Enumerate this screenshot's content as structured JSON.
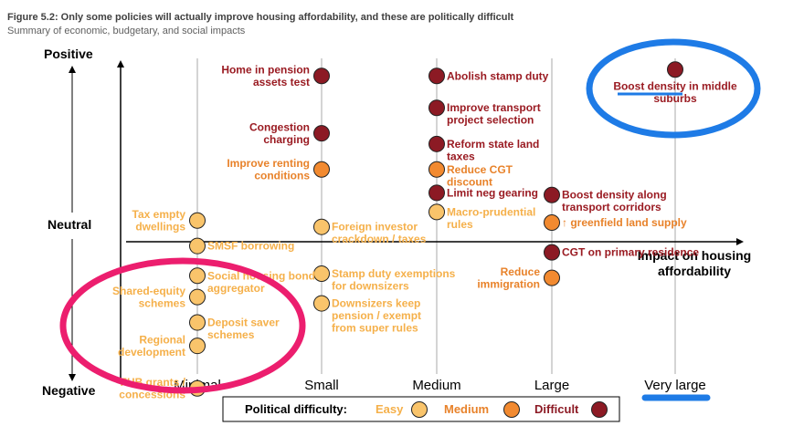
{
  "chart_data": {
    "type": "scatter",
    "title": "Figure 5.2: Only some policies will actually improve housing affordability, and these are politically difficult",
    "subtitle": "Summary of economic, budgetary, and social impacts",
    "x_axis_label": "Impact on housing affordability",
    "x_categories": [
      "Minimal",
      "Small",
      "Medium",
      "Large",
      "Very large"
    ],
    "y_axis_labels": {
      "top": "Positive",
      "middle": "Neutral",
      "bottom": "Negative"
    },
    "y_range": [
      -10,
      10
    ],
    "legend": {
      "title": "Political difficulty:",
      "items": [
        {
          "label": "Easy",
          "color": "#f9c46b",
          "text_color": "#f5b04a"
        },
        {
          "label": "Medium",
          "color": "#f28a30",
          "text_color": "#e8822a"
        },
        {
          "label": "Difficult",
          "color": "#8c1a24",
          "text_color": "#8c1a24"
        }
      ]
    },
    "colors": {
      "easy": "#f9c46b",
      "medium": "#f28a30",
      "difficult": "#8c1a24",
      "easy_text": "#f5b04a",
      "medium_text": "#e8822a",
      "difficult_text": "#9a1b22",
      "annotation_pink": "#ec1e6e",
      "annotation_blue": "#1e7be6"
    },
    "points": [
      {
        "id": "home-pension",
        "category": "Small",
        "score": 7.8,
        "difficulty": "Difficult",
        "label": [
          "Home in pension",
          "assets test"
        ]
      },
      {
        "id": "congestion",
        "category": "Small",
        "score": 5.1,
        "difficulty": "Difficult",
        "label": [
          "Congestion",
          "charging"
        ]
      },
      {
        "id": "renting",
        "category": "Small",
        "score": 3.4,
        "difficulty": "Medium",
        "label": [
          "Improve renting",
          "conditions"
        ]
      },
      {
        "id": "foreign-investor",
        "category": "Small",
        "score": 0.7,
        "difficulty": "Easy",
        "label": [
          "Foreign investor",
          "crackdown / taxes"
        ]
      },
      {
        "id": "stamp-exempt",
        "category": "Small",
        "score": -1.5,
        "difficulty": "Easy",
        "label": [
          "Stamp duty exemptions",
          "for downsizers"
        ]
      },
      {
        "id": "downsizers",
        "category": "Small",
        "score": -2.9,
        "difficulty": "Easy",
        "label": [
          "Downsizers keep",
          "pension / exempt",
          "from super rules"
        ]
      },
      {
        "id": "tax-empty",
        "category": "Minimal",
        "score": 1.0,
        "difficulty": "Easy",
        "label": [
          "Tax empty",
          "dwellings"
        ]
      },
      {
        "id": "smsf",
        "category": "Minimal",
        "score": -0.2,
        "difficulty": "Easy",
        "label": [
          "SMSF borrowing"
        ]
      },
      {
        "id": "housing-bond",
        "category": "Minimal",
        "score": -1.6,
        "difficulty": "Easy",
        "label": [
          "Social housing bond",
          "aggregator"
        ]
      },
      {
        "id": "shared-equity",
        "category": "Minimal",
        "score": -2.6,
        "difficulty": "Easy",
        "label": [
          "Shared-equity",
          "schemes"
        ]
      },
      {
        "id": "deposit-saver",
        "category": "Minimal",
        "score": -3.8,
        "difficulty": "Easy",
        "label": [
          "Deposit saver",
          "schemes"
        ]
      },
      {
        "id": "regional",
        "category": "Minimal",
        "score": -4.9,
        "difficulty": "Easy",
        "label": [
          "Regional",
          "development"
        ]
      },
      {
        "id": "fhb-grants",
        "category": "Minimal",
        "score": -6.9,
        "difficulty": "Easy",
        "label": [
          "FHB grants /",
          "concessions"
        ]
      },
      {
        "id": "abolish-stamp",
        "category": "Medium",
        "score": 7.8,
        "difficulty": "Difficult",
        "label": [
          "Abolish stamp duty"
        ]
      },
      {
        "id": "transport-proj",
        "category": "Medium",
        "score": 6.3,
        "difficulty": "Difficult",
        "label": [
          "Improve transport",
          "project selection"
        ]
      },
      {
        "id": "state-land",
        "category": "Medium",
        "score": 4.6,
        "difficulty": "Difficult",
        "label": [
          "Reform state land",
          "taxes"
        ]
      },
      {
        "id": "cgt-discount",
        "category": "Medium",
        "score": 3.4,
        "difficulty": "Medium",
        "label": [
          "Reduce CGT",
          "discount"
        ]
      },
      {
        "id": "neg-gearing",
        "category": "Medium",
        "score": 2.3,
        "difficulty": "Difficult",
        "label": [
          "Limit neg gearing"
        ]
      },
      {
        "id": "macro-pru",
        "category": "Medium",
        "score": 1.4,
        "difficulty": "Easy",
        "label": [
          "Macro-prudential",
          "rules"
        ]
      },
      {
        "id": "transport-corr",
        "category": "Large",
        "score": 2.2,
        "difficulty": "Difficult",
        "label": [
          "Boost density along",
          "transport corridors"
        ]
      },
      {
        "id": "greenfield",
        "category": "Large",
        "score": 0.9,
        "difficulty": "Medium",
        "label": [
          "↑ greenfield land supply"
        ]
      },
      {
        "id": "cgt-residence",
        "category": "Large",
        "score": -0.5,
        "difficulty": "Difficult",
        "label": [
          "CGT on primary residence"
        ]
      },
      {
        "id": "immigration",
        "category": "Large",
        "score": -1.7,
        "difficulty": "Medium",
        "label": [
          "Reduce",
          "immigration"
        ]
      },
      {
        "id": "middle-suburbs",
        "category": "Very large",
        "score": 8.1,
        "difficulty": "Difficult",
        "label": [
          "Boost density in middle",
          "suburbs"
        ]
      }
    ]
  }
}
